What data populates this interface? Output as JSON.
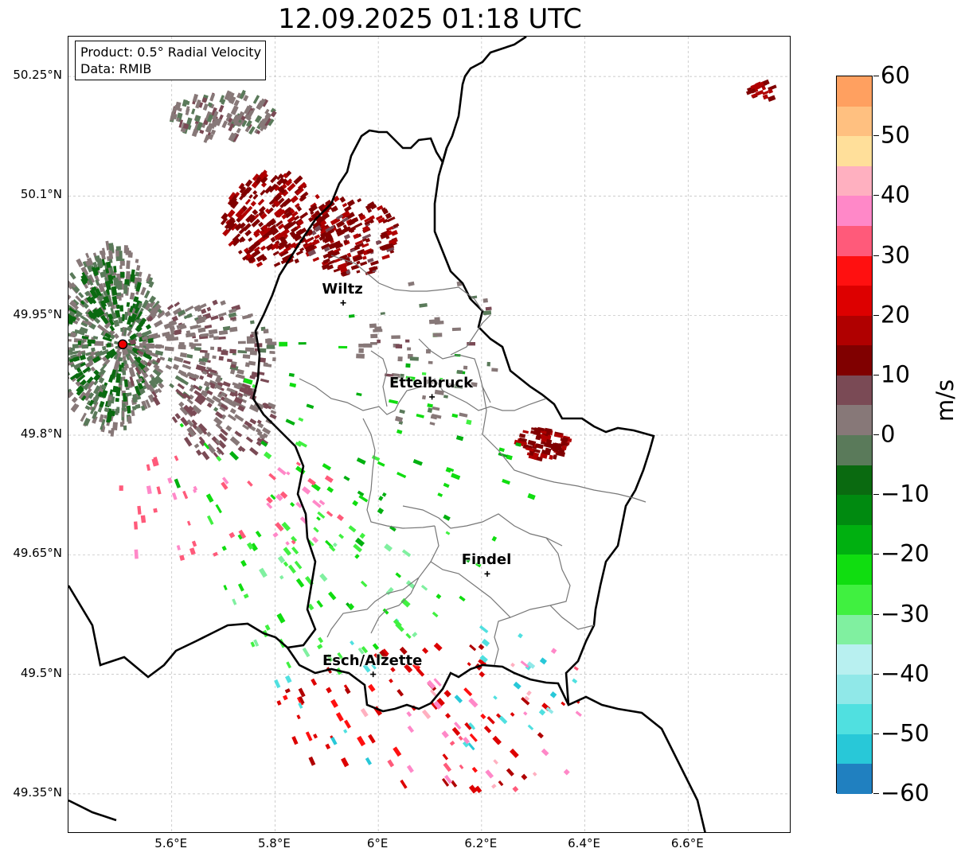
{
  "title": "12.09.2025 01:18 UTC",
  "info_box": {
    "line1": "Product: 0.5° Radial Velocity",
    "line2": "Data: RMIB"
  },
  "map": {
    "lon_range": [
      5.4,
      6.8
    ],
    "lat_range": [
      49.3,
      50.3
    ],
    "lat_ticks": [
      {
        "value": 50.25,
        "label": "50.25°N"
      },
      {
        "value": 50.1,
        "label": "50.1°N"
      },
      {
        "value": 49.95,
        "label": "49.95°N"
      },
      {
        "value": 49.8,
        "label": "49.8°N"
      },
      {
        "value": 49.65,
        "label": "49.65°N"
      },
      {
        "value": 49.5,
        "label": "49.5°N"
      },
      {
        "value": 49.35,
        "label": "49.35°N"
      }
    ],
    "lon_ticks": [
      {
        "value": 5.6,
        "label": "5.6°E"
      },
      {
        "value": 5.8,
        "label": "5.8°E"
      },
      {
        "value": 6.0,
        "label": "6°E"
      },
      {
        "value": 6.2,
        "label": "6.2°E"
      },
      {
        "value": 6.4,
        "label": "6.4°E"
      },
      {
        "value": 6.6,
        "label": "6.6°E"
      }
    ],
    "radar_site": {
      "lon": 5.505,
      "lat": 49.914
    },
    "cities": [
      {
        "name": "Wiltz",
        "lon": 5.932,
        "lat": 49.966
      },
      {
        "name": "Ettelbruck",
        "lon": 6.104,
        "lat": 49.848
      },
      {
        "name": "Findel",
        "lon": 6.211,
        "lat": 49.626
      },
      {
        "name": "Esch/Alzette",
        "lon": 5.99,
        "lat": 49.5
      }
    ],
    "velocity_regions": [
      {
        "lon": 5.8,
        "lat": 50.07,
        "rx": 0.1,
        "ry": 0.06,
        "v": 14,
        "n": 260
      },
      {
        "lon": 5.95,
        "lat": 50.05,
        "rx": 0.09,
        "ry": 0.05,
        "v": 13,
        "n": 160
      },
      {
        "lon": 5.7,
        "lat": 50.2,
        "rx": 0.1,
        "ry": 0.03,
        "v": 2,
        "n": 130
      },
      {
        "lon": 5.48,
        "lat": 49.92,
        "rx": 0.1,
        "ry": 0.12,
        "v": 1,
        "n": 420
      },
      {
        "lon": 5.48,
        "lat": 49.92,
        "rx": 0.08,
        "ry": 0.1,
        "v": -6,
        "n": 200
      },
      {
        "lon": 5.65,
        "lat": 49.9,
        "rx": 0.15,
        "ry": 0.07,
        "v": 3,
        "n": 240
      },
      {
        "lon": 5.7,
        "lat": 49.82,
        "rx": 0.1,
        "ry": 0.05,
        "v": 5,
        "n": 120
      },
      {
        "lon": 6.32,
        "lat": 49.79,
        "rx": 0.05,
        "ry": 0.02,
        "v": 14,
        "n": 70
      },
      {
        "lon": 6.75,
        "lat": 50.23,
        "rx": 0.03,
        "ry": 0.012,
        "v": 15,
        "n": 20
      },
      {
        "lon": 5.95,
        "lat": 49.75,
        "rx": 0.35,
        "ry": 0.2,
        "v": -22,
        "n": 90
      },
      {
        "lon": 6.1,
        "lat": 49.45,
        "rx": 0.3,
        "ry": 0.1,
        "v": 22,
        "n": 80
      },
      {
        "lon": 6.1,
        "lat": 49.48,
        "rx": 0.3,
        "ry": 0.1,
        "v": -48,
        "n": 30
      },
      {
        "lon": 6.2,
        "lat": 49.45,
        "rx": 0.25,
        "ry": 0.1,
        "v": 38,
        "n": 35
      },
      {
        "lon": 5.9,
        "lat": 49.6,
        "rx": 0.2,
        "ry": 0.1,
        "v": -28,
        "n": 60
      },
      {
        "lon": 6.1,
        "lat": 49.9,
        "rx": 0.15,
        "ry": 0.1,
        "v": 2,
        "n": 60
      },
      {
        "lon": 5.7,
        "lat": 49.7,
        "rx": 0.25,
        "ry": 0.08,
        "v": 35,
        "n": 50
      }
    ]
  },
  "colorbar": {
    "unit": "m/s",
    "vmin": -60,
    "vmax": 60,
    "ticks": [
      {
        "value": 60,
        "label": "60"
      },
      {
        "value": 50,
        "label": "50"
      },
      {
        "value": 40,
        "label": "40"
      },
      {
        "value": 30,
        "label": "30"
      },
      {
        "value": 20,
        "label": "20"
      },
      {
        "value": 10,
        "label": "10"
      },
      {
        "value": 0,
        "label": "0"
      },
      {
        "value": -10,
        "label": "−10"
      },
      {
        "value": -20,
        "label": "−20"
      },
      {
        "value": -30,
        "label": "−30"
      },
      {
        "value": -40,
        "label": "−40"
      },
      {
        "value": -50,
        "label": "−50"
      },
      {
        "value": -60,
        "label": "−60"
      }
    ],
    "stops": [
      {
        "from": 55,
        "to": 60,
        "color": "#ffa060"
      },
      {
        "from": 50,
        "to": 55,
        "color": "#ffc080"
      },
      {
        "from": 45,
        "to": 50,
        "color": "#ffdf9a"
      },
      {
        "from": 40,
        "to": 45,
        "color": "#ffb0c0"
      },
      {
        "from": 35,
        "to": 40,
        "color": "#ff88c8"
      },
      {
        "from": 30,
        "to": 35,
        "color": "#ff5a7a"
      },
      {
        "from": 25,
        "to": 30,
        "color": "#ff1010"
      },
      {
        "from": 20,
        "to": 25,
        "color": "#dd0000"
      },
      {
        "from": 15,
        "to": 20,
        "color": "#b00000"
      },
      {
        "from": 10,
        "to": 15,
        "color": "#800000"
      },
      {
        "from": 5,
        "to": 10,
        "color": "#7a4a55"
      },
      {
        "from": 0,
        "to": 5,
        "color": "#877878"
      },
      {
        "from": -5,
        "to": 0,
        "color": "#5a7a5a"
      },
      {
        "from": -10,
        "to": -5,
        "color": "#0a6a10"
      },
      {
        "from": -15,
        "to": -10,
        "color": "#008a10"
      },
      {
        "from": -20,
        "to": -15,
        "color": "#00b010"
      },
      {
        "from": -25,
        "to": -20,
        "color": "#10dd10"
      },
      {
        "from": -30,
        "to": -25,
        "color": "#40f040"
      },
      {
        "from": -35,
        "to": -30,
        "color": "#80f0a0"
      },
      {
        "from": -40,
        "to": -35,
        "color": "#b8f0f0"
      },
      {
        "from": -45,
        "to": -40,
        "color": "#90e8e8"
      },
      {
        "from": -50,
        "to": -45,
        "color": "#50e0e0"
      },
      {
        "from": -55,
        "to": -50,
        "color": "#28c8d8"
      },
      {
        "from": -60,
        "to": -55,
        "color": "#2080c0"
      }
    ]
  }
}
